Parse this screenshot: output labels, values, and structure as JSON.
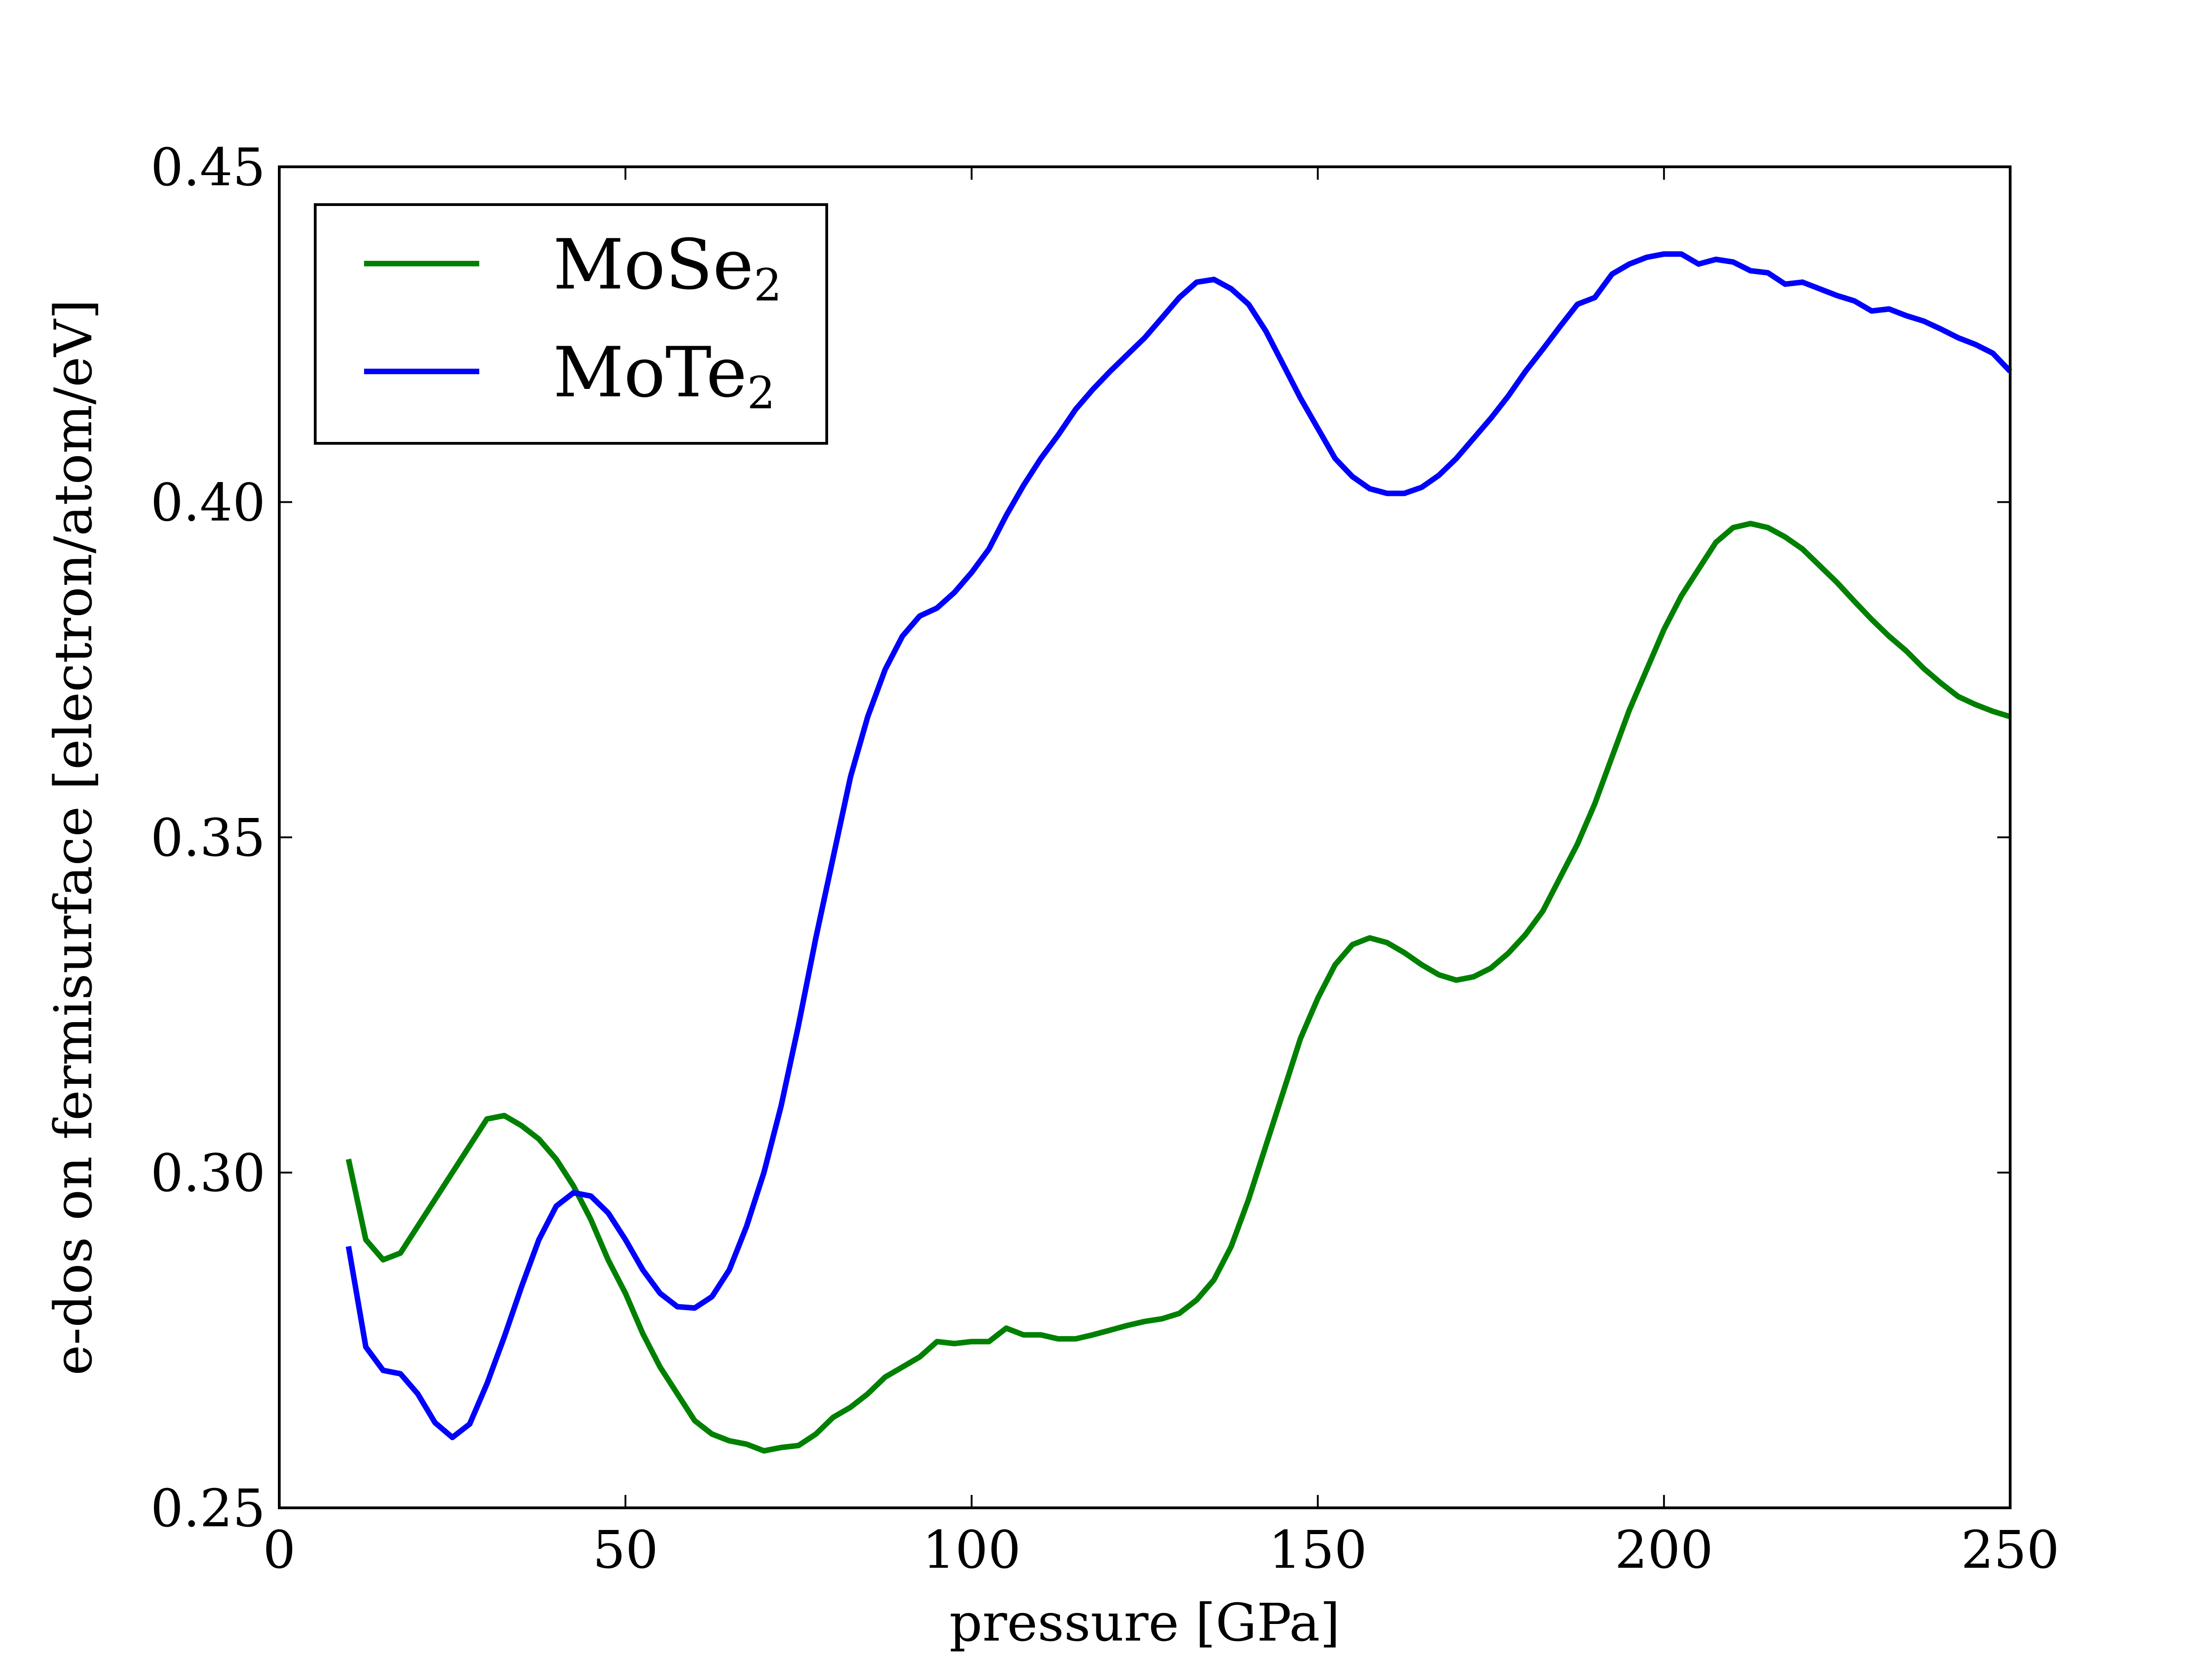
{
  "chart_data": {
    "type": "line",
    "title": "",
    "xlabel": "pressure [GPa]",
    "ylabel": "e-dos on fermisurface [electron/atom/eV]",
    "xlim": [
      0,
      250
    ],
    "ylim": [
      0.25,
      0.45
    ],
    "xticks": [
      0,
      50,
      100,
      150,
      200,
      250
    ],
    "xtick_labels": [
      "0",
      "50",
      "100",
      "150",
      "200",
      "250"
    ],
    "yticks": [
      0.25,
      0.3,
      0.35,
      0.4,
      0.45
    ],
    "ytick_labels": [
      "0.25",
      "0.30",
      "0.35",
      "0.40",
      "0.45"
    ],
    "grid": false,
    "legend_position": "top-left",
    "series": [
      {
        "name": "MoSe",
        "name_subscript": "2",
        "color": "#008000",
        "x": [
          10,
          12.5,
          15,
          17.5,
          20,
          22.5,
          25,
          27.5,
          30,
          32.5,
          35,
          37.5,
          40,
          42.5,
          45,
          47.5,
          50,
          52.5,
          55,
          57.5,
          60,
          62.5,
          65,
          67.5,
          70,
          72.5,
          75,
          77.5,
          80,
          82.5,
          85,
          87.5,
          90,
          92.5,
          95,
          97.5,
          100,
          102.5,
          105,
          107.5,
          110,
          112.5,
          115,
          117.5,
          120,
          122.5,
          125,
          127.5,
          130,
          132.5,
          135,
          137.5,
          140,
          142.5,
          145,
          147.5,
          150,
          152.5,
          155,
          157.5,
          160,
          162.5,
          165,
          167.5,
          170,
          172.5,
          175,
          177.5,
          180,
          182.5,
          185,
          187.5,
          190,
          192.5,
          195,
          197.5,
          200,
          202.5,
          205,
          207.5,
          210,
          212.5,
          215,
          217.5,
          220,
          222.5,
          225,
          227.5,
          230,
          232.5,
          235,
          237.5,
          240,
          242.5,
          245,
          247.5,
          250
        ],
        "values": [
          0.302,
          0.29,
          0.287,
          0.288,
          0.292,
          0.296,
          0.3,
          0.304,
          0.308,
          0.3085,
          0.307,
          0.305,
          0.302,
          0.298,
          0.293,
          0.287,
          0.282,
          0.276,
          0.271,
          0.267,
          0.263,
          0.261,
          0.26,
          0.2595,
          0.2585,
          0.259,
          0.2593,
          0.261,
          0.2635,
          0.265,
          0.267,
          0.2695,
          0.271,
          0.2725,
          0.2748,
          0.2745,
          0.2748,
          0.2748,
          0.2768,
          0.2758,
          0.2758,
          0.2752,
          0.2752,
          0.2758,
          0.2765,
          0.2772,
          0.2778,
          0.2782,
          0.279,
          0.281,
          0.284,
          0.289,
          0.296,
          0.304,
          0.312,
          0.32,
          0.326,
          0.331,
          0.334,
          0.335,
          0.3343,
          0.3328,
          0.331,
          0.3295,
          0.3287,
          0.3292,
          0.3305,
          0.3327,
          0.3355,
          0.339,
          0.344,
          0.349,
          0.355,
          0.362,
          0.369,
          0.375,
          0.381,
          0.386,
          0.39,
          0.394,
          0.3962,
          0.3968,
          0.3962,
          0.3948,
          0.393,
          0.3905,
          0.388,
          0.3852,
          0.3825,
          0.38,
          0.3778,
          0.3752,
          0.373,
          0.371,
          0.3698,
          0.3688,
          0.368
        ]
      },
      {
        "name": "MoTe",
        "name_subscript": "2",
        "color": "#0000ff",
        "x": [
          10,
          12.5,
          15,
          17.5,
          20,
          22.5,
          25,
          27.5,
          30,
          32.5,
          35,
          37.5,
          40,
          42.5,
          45,
          47.5,
          50,
          52.5,
          55,
          57.5,
          60,
          62.5,
          65,
          67.5,
          70,
          72.5,
          75,
          77.5,
          80,
          82.5,
          85,
          87.5,
          90,
          92.5,
          95,
          97.5,
          100,
          102.5,
          105,
          107.5,
          110,
          112.5,
          115,
          117.5,
          120,
          122.5,
          125,
          127.5,
          130,
          132.5,
          135,
          137.5,
          140,
          142.5,
          145,
          147.5,
          150,
          152.5,
          155,
          157.5,
          160,
          162.5,
          165,
          167.5,
          170,
          172.5,
          175,
          177.5,
          180,
          182.5,
          185,
          187.5,
          190,
          192.5,
          195,
          197.5,
          200,
          202.5,
          205,
          207.5,
          210,
          212.5,
          215,
          217.5,
          220,
          222.5,
          225,
          227.5,
          230,
          232.5,
          235,
          237.5,
          240,
          242.5,
          245,
          247.5,
          250
        ],
        "values": [
          0.289,
          0.274,
          0.2705,
          0.27,
          0.267,
          0.2627,
          0.2605,
          0.2625,
          0.2685,
          0.2755,
          0.283,
          0.29,
          0.295,
          0.297,
          0.2965,
          0.294,
          0.29,
          0.2855,
          0.282,
          0.28,
          0.2798,
          0.2815,
          0.2855,
          0.292,
          0.3,
          0.31,
          0.322,
          0.335,
          0.347,
          0.359,
          0.368,
          0.375,
          0.38,
          0.383,
          0.3842,
          0.3865,
          0.3895,
          0.393,
          0.398,
          0.4025,
          0.4065,
          0.41,
          0.4138,
          0.4168,
          0.4195,
          0.422,
          0.4245,
          0.4275,
          0.4305,
          0.4328,
          0.4332,
          0.4318,
          0.4295,
          0.4255,
          0.4205,
          0.4155,
          0.411,
          0.4065,
          0.4038,
          0.402,
          0.4013,
          0.4013,
          0.4022,
          0.404,
          0.4065,
          0.4095,
          0.4125,
          0.4158,
          0.4195,
          0.4228,
          0.4262,
          0.4295,
          0.4305,
          0.434,
          0.4355,
          0.4365,
          0.437,
          0.437,
          0.4355,
          0.4362,
          0.4358,
          0.4345,
          0.4342,
          0.4325,
          0.4328,
          0.4318,
          0.4308,
          0.43,
          0.4285,
          0.4288,
          0.4278,
          0.427,
          0.4258,
          0.4245,
          0.4235,
          0.4222,
          0.4195
        ]
      }
    ]
  }
}
